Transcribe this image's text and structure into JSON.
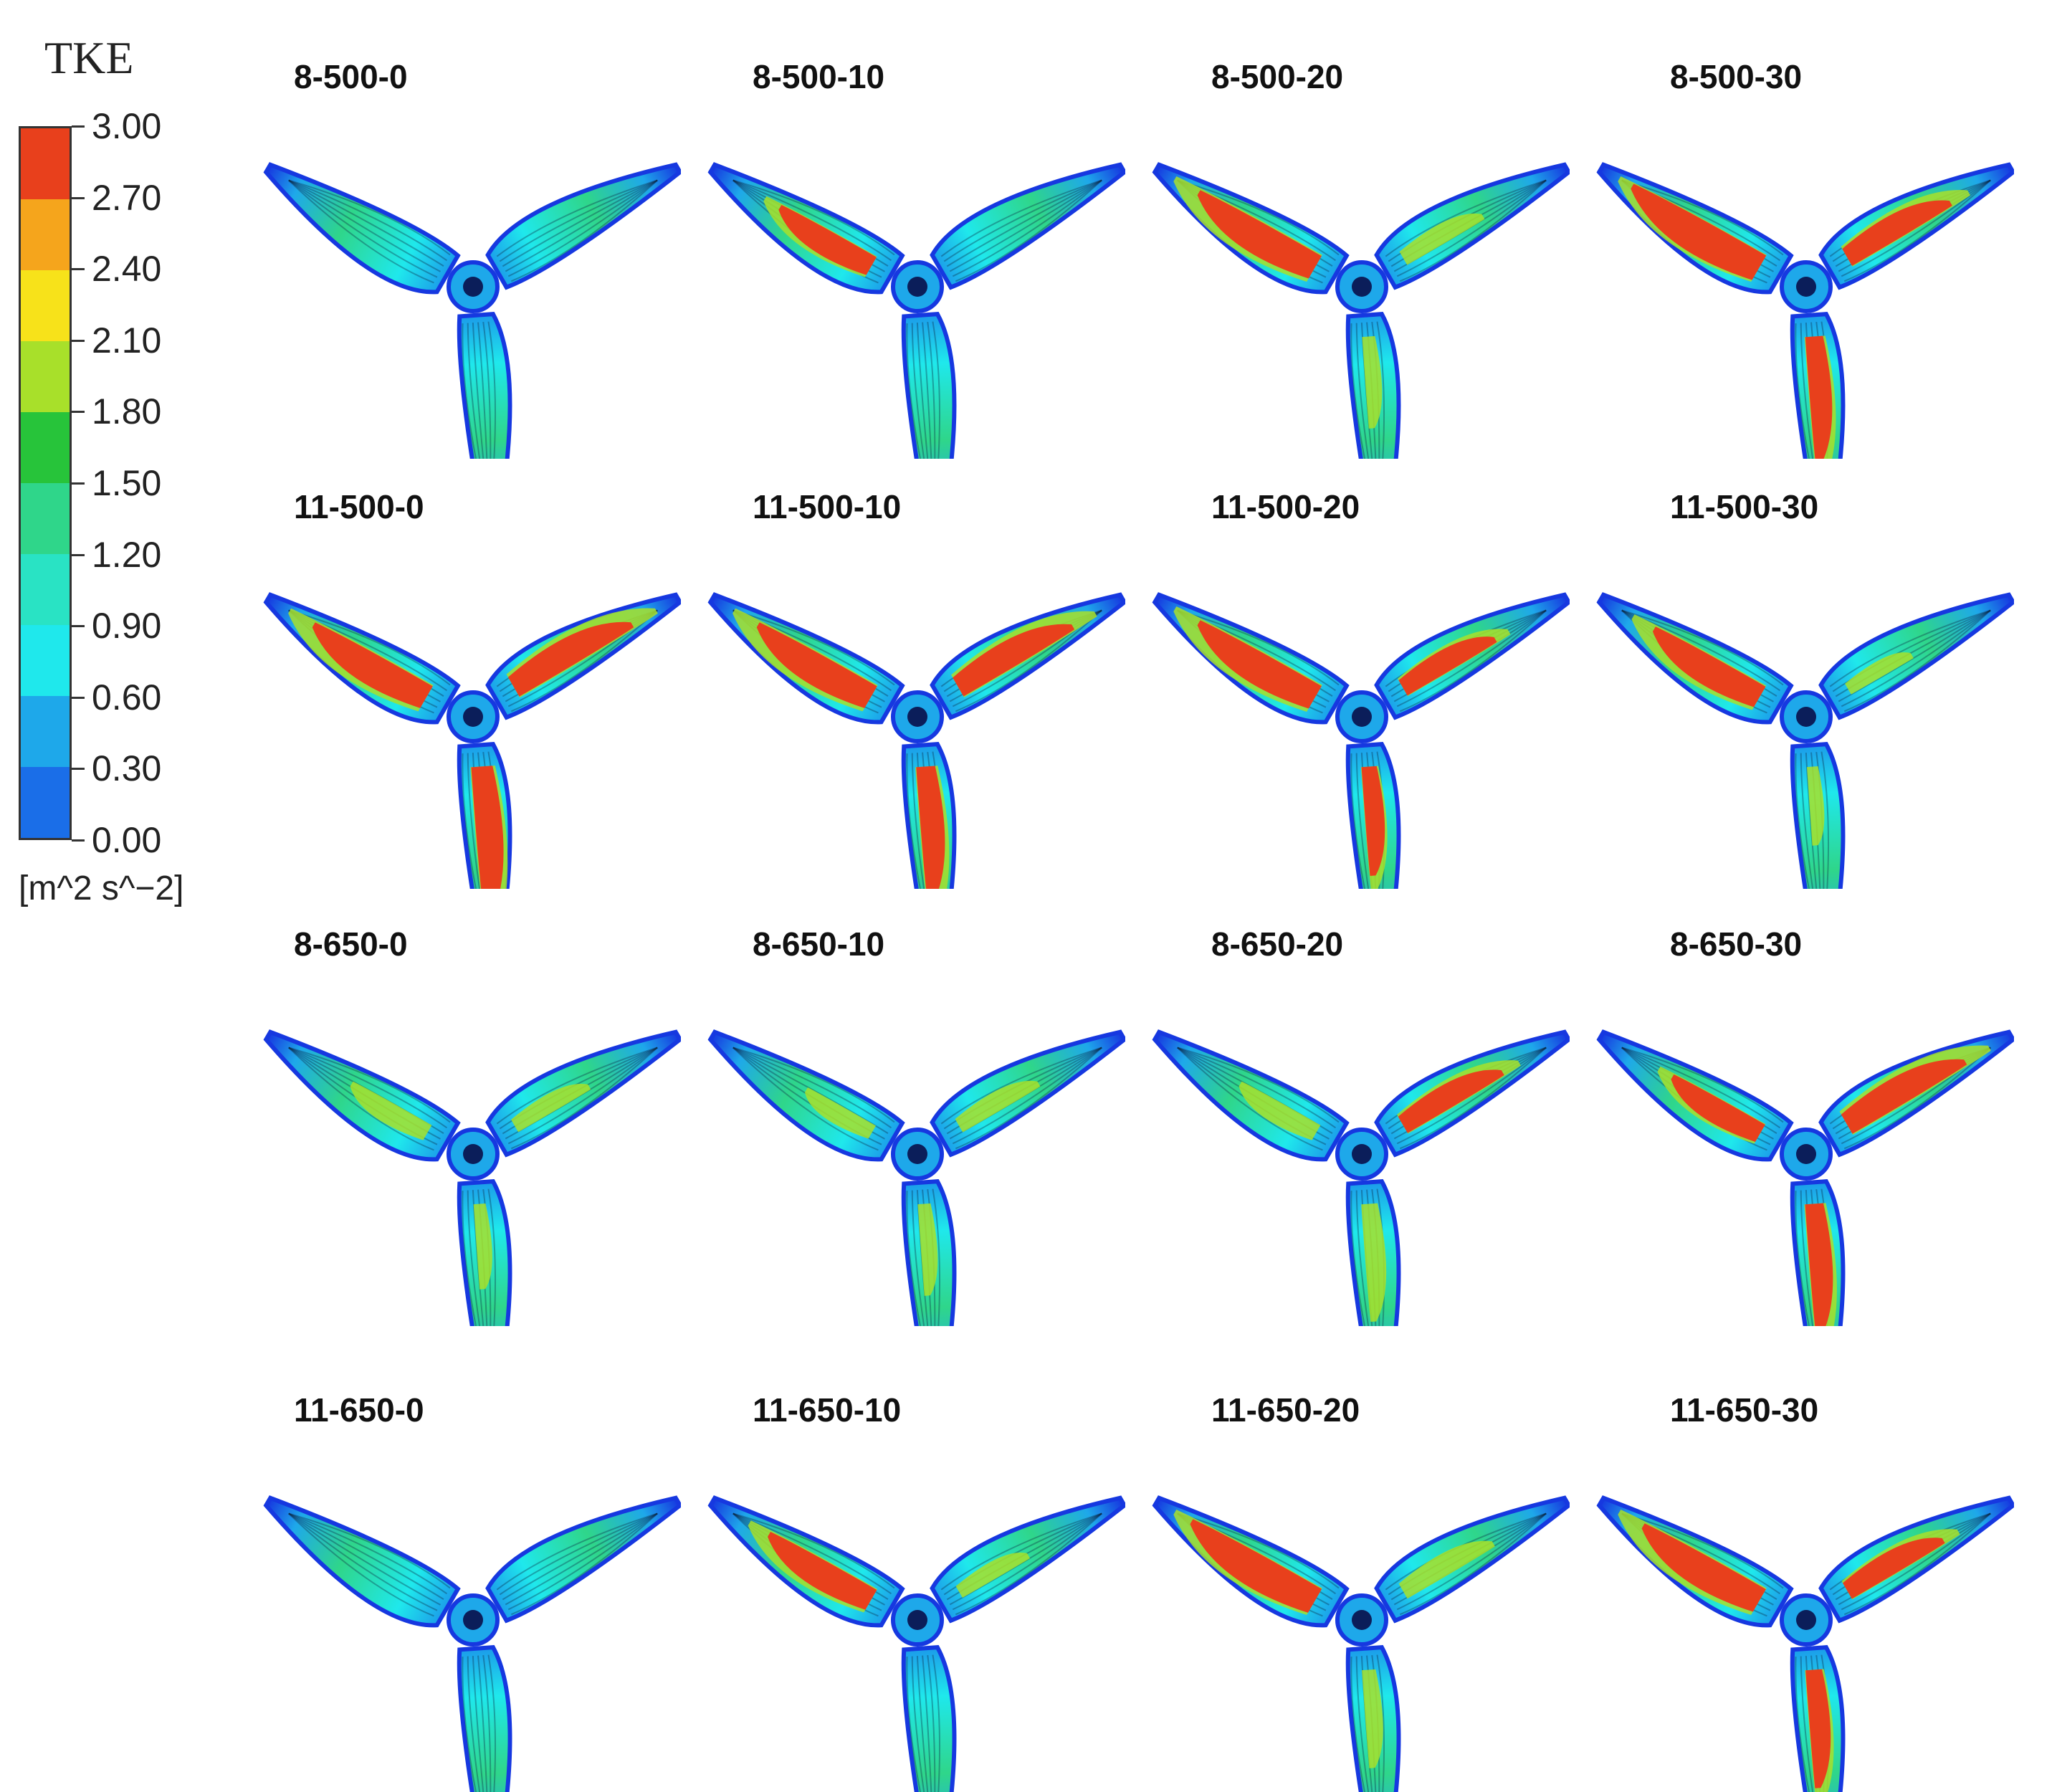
{
  "legend": {
    "title": "TKE",
    "unit": "[m^2 s^−2]",
    "ticks": [
      "3.00",
      "2.70",
      "2.40",
      "2.10",
      "1.80",
      "1.50",
      "1.20",
      "0.90",
      "0.60",
      "0.30",
      "0.00"
    ],
    "colors": [
      "#e8401c",
      "#f5a51c",
      "#f7e21a",
      "#a8e02a",
      "#27c43a",
      "#2fd68a",
      "#29e3c4",
      "#1fe8ec",
      "#1ea8ea",
      "#1a6ee8",
      "#1638e0"
    ]
  },
  "panels": [
    {
      "label": "8-500-0",
      "hot": [
        0,
        0,
        0
      ]
    },
    {
      "label": "8-500-10",
      "hot": [
        0,
        0.5,
        0
      ]
    },
    {
      "label": "8-500-20",
      "hot": [
        0.15,
        0.85,
        0.2
      ]
    },
    {
      "label": "8-500-30",
      "hot": [
        0.6,
        1.0,
        0.6
      ]
    },
    {
      "label": "11-500-0",
      "hot": [
        0.9,
        0.8,
        0.8
      ]
    },
    {
      "label": "11-500-10",
      "hot": [
        0.7,
        0.8,
        0.75
      ]
    },
    {
      "label": "11-500-20",
      "hot": [
        0.4,
        0.85,
        0.45
      ]
    },
    {
      "label": "11-500-30",
      "hot": [
        0.05,
        0.7,
        0.05
      ]
    },
    {
      "label": "8-650-0",
      "hot": [
        0.1,
        0.2,
        0.15
      ]
    },
    {
      "label": "8-650-10",
      "hot": [
        0.15,
        0.1,
        0.2
      ]
    },
    {
      "label": "8-650-20",
      "hot": [
        0.35,
        0.2,
        0.55
      ]
    },
    {
      "label": "8-650-30",
      "hot": [
        0.65,
        0.45,
        0.8
      ]
    },
    {
      "label": "11-650-0",
      "hot": [
        0,
        0,
        0
      ]
    },
    {
      "label": "11-650-10",
      "hot": [
        0,
        0.65,
        0.1
      ]
    },
    {
      "label": "11-650-20",
      "hot": [
        0.2,
        0.95,
        0.3
      ]
    },
    {
      "label": "11-650-30",
      "hot": [
        0.5,
        0.85,
        0.5
      ]
    }
  ]
}
